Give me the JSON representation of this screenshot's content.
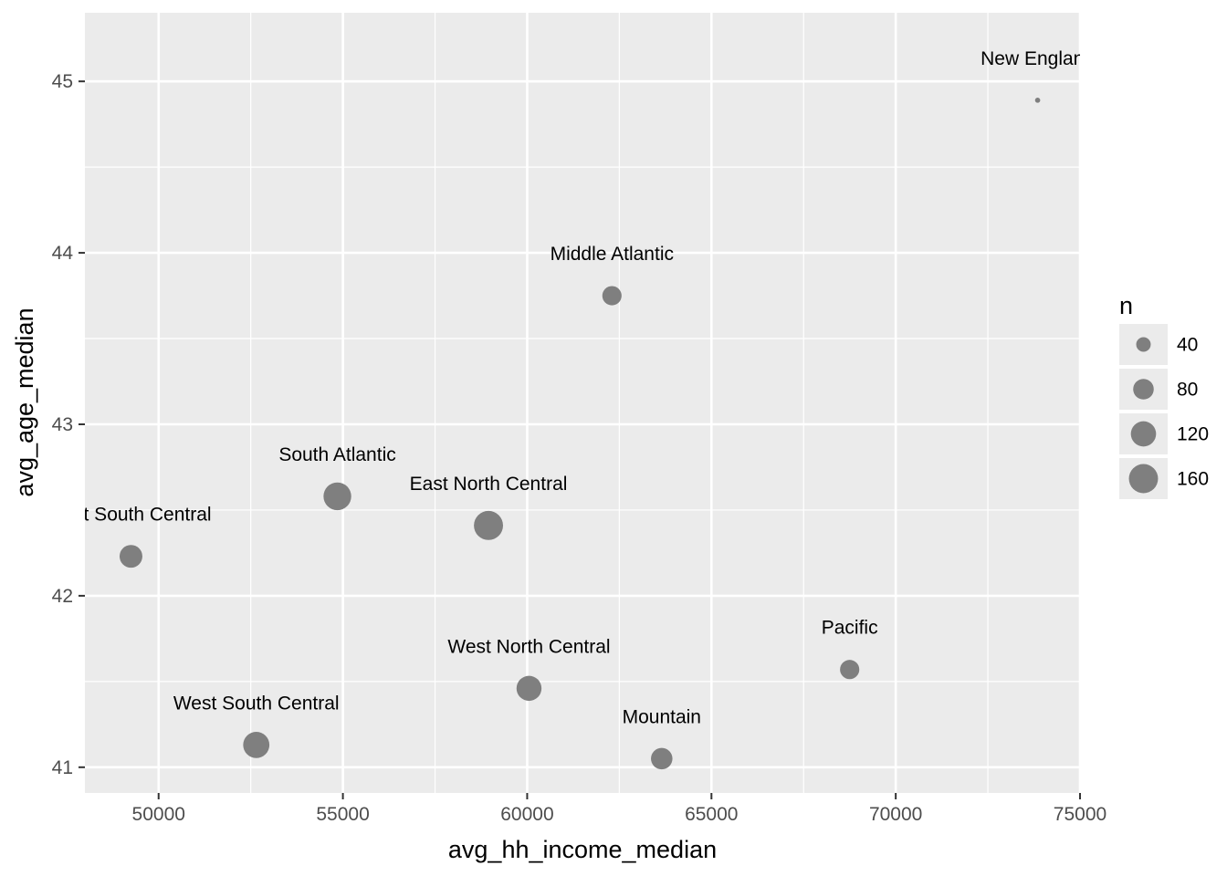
{
  "chart_data": {
    "type": "scatter",
    "title": "",
    "xlabel": "avg_hh_income_median",
    "ylabel": "avg_age_median",
    "xlim": [
      48000,
      75000
    ],
    "ylim": [
      40.85,
      45.4
    ],
    "x_ticks": [
      50000,
      55000,
      60000,
      65000,
      70000,
      75000
    ],
    "y_ticks": [
      41,
      42,
      43,
      44,
      45
    ],
    "grid": true,
    "size_variable": "n",
    "points": [
      {
        "label": "New England",
        "x": 73850,
        "y": 44.89,
        "n": 5
      },
      {
        "label": "Middle Atlantic",
        "x": 62300,
        "y": 43.75,
        "n": 70
      },
      {
        "label": "South Atlantic",
        "x": 54850,
        "y": 42.58,
        "n": 145
      },
      {
        "label": "East North Central",
        "x": 58950,
        "y": 42.41,
        "n": 160
      },
      {
        "label": "East South Central",
        "x": 49250,
        "y": 42.23,
        "n": 98
      },
      {
        "label": "Pacific",
        "x": 68750,
        "y": 41.57,
        "n": 70
      },
      {
        "label": "West North Central",
        "x": 60050,
        "y": 41.46,
        "n": 118
      },
      {
        "label": "West South Central",
        "x": 52650,
        "y": 41.13,
        "n": 130
      },
      {
        "label": "Mountain",
        "x": 63650,
        "y": 41.05,
        "n": 87
      }
    ],
    "legend": {
      "title": "n",
      "position": "right",
      "entries": [
        {
          "label": "40",
          "value": 40
        },
        {
          "label": "80",
          "value": 80
        },
        {
          "label": "120",
          "value": 120
        },
        {
          "label": "160",
          "value": 160
        }
      ]
    },
    "colors": {
      "panel": "#ebebeb",
      "grid": "#ffffff",
      "point": "#7f7f7f",
      "tick": "#333333"
    }
  }
}
